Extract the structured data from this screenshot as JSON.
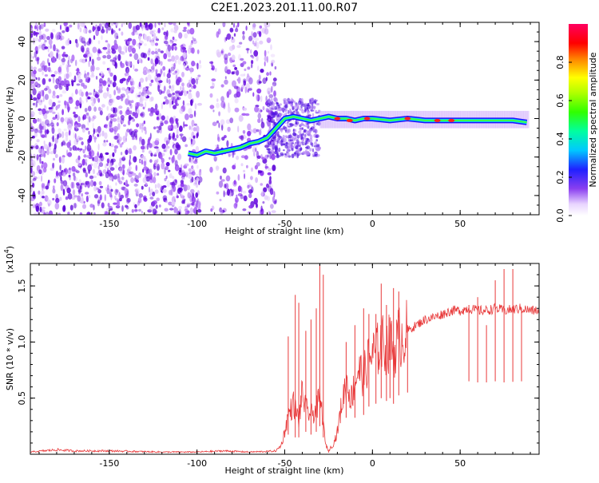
{
  "title": "C2E1.2023.201.11.00.R07",
  "top_panel": {
    "xlabel": "Height of straight line (km)",
    "ylabel": "Frequency (Hz)",
    "xticks": [
      "-150",
      "-100",
      "-50",
      "0",
      "50"
    ],
    "yticks": [
      "40",
      "20",
      "0",
      "-20",
      "-40"
    ]
  },
  "colorbar": {
    "label": "Normalized spectral amplitude",
    "ticks": [
      "0.0",
      "0.2",
      "0.4",
      "0.6",
      "0.8"
    ]
  },
  "bottom_panel": {
    "xlabel": "Height of straight line (km)",
    "ylabel": "SNR (10 * v/v)",
    "exponent": "(x10",
    "exponent_power": "4",
    "exponent_close": ")",
    "xticks": [
      "-150",
      "-100",
      "-50",
      "0",
      "50"
    ],
    "yticks": [
      "1.5",
      "1.0",
      "0.5"
    ]
  },
  "colors": {
    "snr_line": "#e8393a",
    "scatter_base": "#7a20e8",
    "ridge_core": "#ff2020"
  },
  "chart_data": [
    {
      "type": "heatmap",
      "title": "C2E1.2023.201.11.00.R07",
      "xlabel": "Height of straight line (km)",
      "ylabel": "Frequency (Hz)",
      "xlim": [
        -195,
        95
      ],
      "ylim": [
        -50,
        50
      ],
      "colorbar_range": [
        0,
        1
      ],
      "colorbar_label": "Normalized spectral amplitude",
      "ridge": {
        "x": [
          -105,
          -100,
          -95,
          -90,
          -85,
          -80,
          -75,
          -70,
          -65,
          -60,
          -55,
          -50,
          -45,
          -40,
          -35,
          -30,
          -25,
          -20,
          -15,
          -10,
          -5,
          0,
          10,
          20,
          30,
          40,
          50,
          60,
          70,
          80,
          88
        ],
        "y": [
          -18,
          -19,
          -17,
          -18,
          -17,
          -16,
          -15,
          -13,
          -12,
          -10,
          -5,
          0,
          1,
          0,
          -1,
          0,
          1,
          0,
          0,
          -1,
          0,
          0,
          -1,
          0,
          -1,
          -1,
          -1,
          -1,
          -1,
          -1,
          -2
        ]
      }
    },
    {
      "type": "line",
      "xlabel": "Height of straight line (km)",
      "ylabel": "SNR (10 * v/v)",
      "xlim": [
        -195,
        95
      ],
      "ylim": [
        0,
        17000
      ],
      "series": [
        {
          "x": [
            -195,
            -180,
            -170,
            -150,
            -120,
            -100,
            -85,
            -70,
            -60,
            -55,
            -52,
            -50,
            -48,
            -45,
            -42,
            -40,
            -38,
            -35,
            -32,
            -30,
            -28,
            -27,
            -25,
            -22,
            -20,
            -18,
            -15,
            -12,
            -10,
            -8,
            -5,
            -2,
            0,
            2,
            5,
            8,
            10,
            12,
            15,
            18,
            20,
            25,
            30,
            35,
            40,
            45,
            50,
            55,
            60,
            65,
            70,
            75,
            80,
            85,
            90,
            95
          ],
          "y": [
            200,
            400,
            300,
            300,
            200,
            200,
            300,
            200,
            250,
            300,
            800,
            2000,
            3500,
            4500,
            3000,
            5500,
            4000,
            3500,
            4000,
            5000,
            3000,
            1000,
            300,
            1000,
            2000,
            4000,
            6500,
            5000,
            6500,
            7500,
            7000,
            8500,
            9000,
            9000,
            10000,
            9500,
            10000,
            9000,
            10500,
            10500,
            11000,
            11500,
            12000,
            12200,
            12500,
            12800,
            12800,
            13000,
            12800,
            12800,
            13000,
            12800,
            12900,
            13000,
            12800,
            12800
          ],
          "spikes": {
            "x": [
              -48,
              -44,
              -42,
              -38,
              -35,
              -32,
              -30,
              -28,
              -25,
              -20,
              -15,
              -10,
              -5,
              -2,
              2,
              5,
              8,
              10,
              12,
              15,
              20,
              55,
              60,
              65,
              70,
              75,
              80,
              85
            ],
            "y": [
              10500,
              14200,
              13500,
              11000,
              12000,
              13000,
              17000,
              16000,
              300,
              1000,
              10000,
              11500,
              13000,
              12500,
              12500,
              15200,
              13300,
              12200,
              14800,
              14500,
              11500,
              13300,
              14000,
              11500,
              15500,
              16500,
              16500,
              13000
            ]
          }
        }
      ]
    }
  ]
}
